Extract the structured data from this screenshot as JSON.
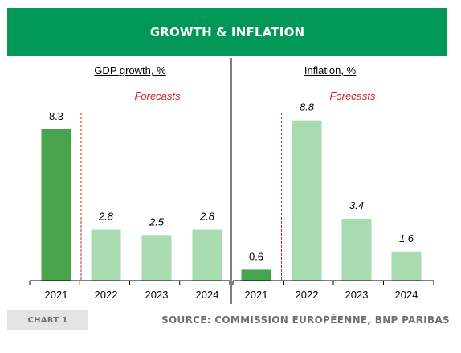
{
  "banner": {
    "title": "GROWTH & INFLATION"
  },
  "footer": {
    "chart_label": "CHART 1",
    "source": "SOURCE: COMMISSION EUROPÉENNE, BNP PARIBAS"
  },
  "colors": {
    "brand": "#009757",
    "actual": "#48a34d",
    "forecast": "#a8dbb0",
    "forecast_line": "#d62020"
  },
  "chart_data": [
    {
      "type": "bar",
      "title": "GDP growth, %",
      "annotation": "Forecasts",
      "categories": [
        "2021",
        "2022",
        "2023",
        "2024"
      ],
      "values": [
        8.3,
        2.8,
        2.5,
        2.8
      ],
      "value_labels": [
        "8.3",
        "2.8",
        "2.5",
        "2.8"
      ],
      "forecast_from_index": 1,
      "ylim": [
        0,
        10
      ]
    },
    {
      "type": "bar",
      "title": "Inflation, %",
      "annotation": "Forecasts",
      "categories": [
        "2021",
        "2022",
        "2023",
        "2024"
      ],
      "values": [
        0.6,
        8.8,
        3.4,
        1.6
      ],
      "value_labels": [
        "0.6",
        "8.8",
        "3.4",
        "1.6"
      ],
      "forecast_from_index": 1,
      "ylim": [
        0,
        10
      ]
    }
  ]
}
